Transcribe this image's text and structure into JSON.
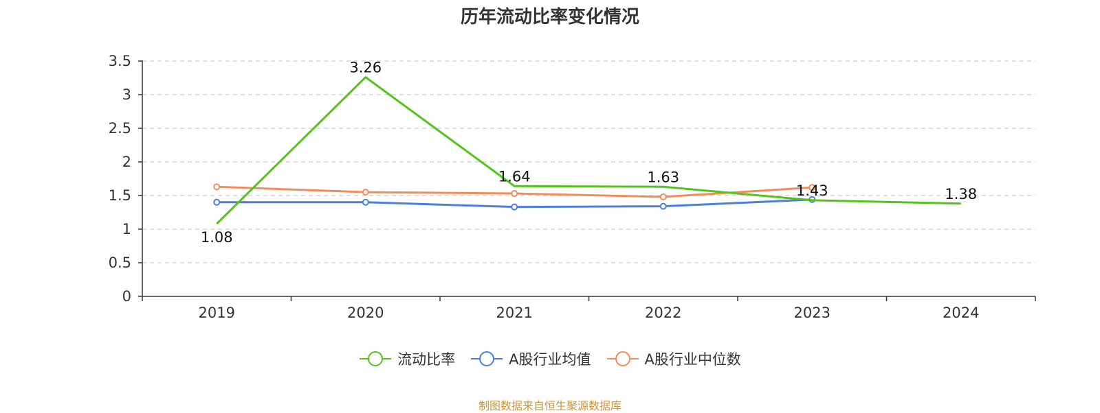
{
  "title": "历年流动比率变化情况",
  "source_note": "制图数据来自恒生聚源数据库",
  "chart_data": {
    "type": "line",
    "categories": [
      "2019",
      "2020",
      "2021",
      "2022",
      "2023",
      "2024"
    ],
    "ylim": [
      0,
      3.5
    ],
    "yticks": [
      "0",
      "0.5",
      "1",
      "1.5",
      "2",
      "2.5",
      "3",
      "3.5"
    ],
    "grid": true,
    "legend_position": "bottom",
    "series": [
      {
        "name": "流动比率",
        "color": "#52c41a",
        "values": [
          1.08,
          3.26,
          1.64,
          1.63,
          1.43,
          1.38
        ],
        "labels": [
          "1.08",
          "3.26",
          "1.64",
          "1.63",
          "1.43",
          "1.38"
        ]
      },
      {
        "name": "A股行业均值",
        "color": "#4a7fdc",
        "values": [
          1.4,
          1.4,
          1.33,
          1.34,
          1.44,
          null
        ]
      },
      {
        "name": "A股行业中位数",
        "color": "#f28c5b",
        "values": [
          1.63,
          1.55,
          1.53,
          1.48,
          1.62,
          null
        ]
      }
    ]
  }
}
